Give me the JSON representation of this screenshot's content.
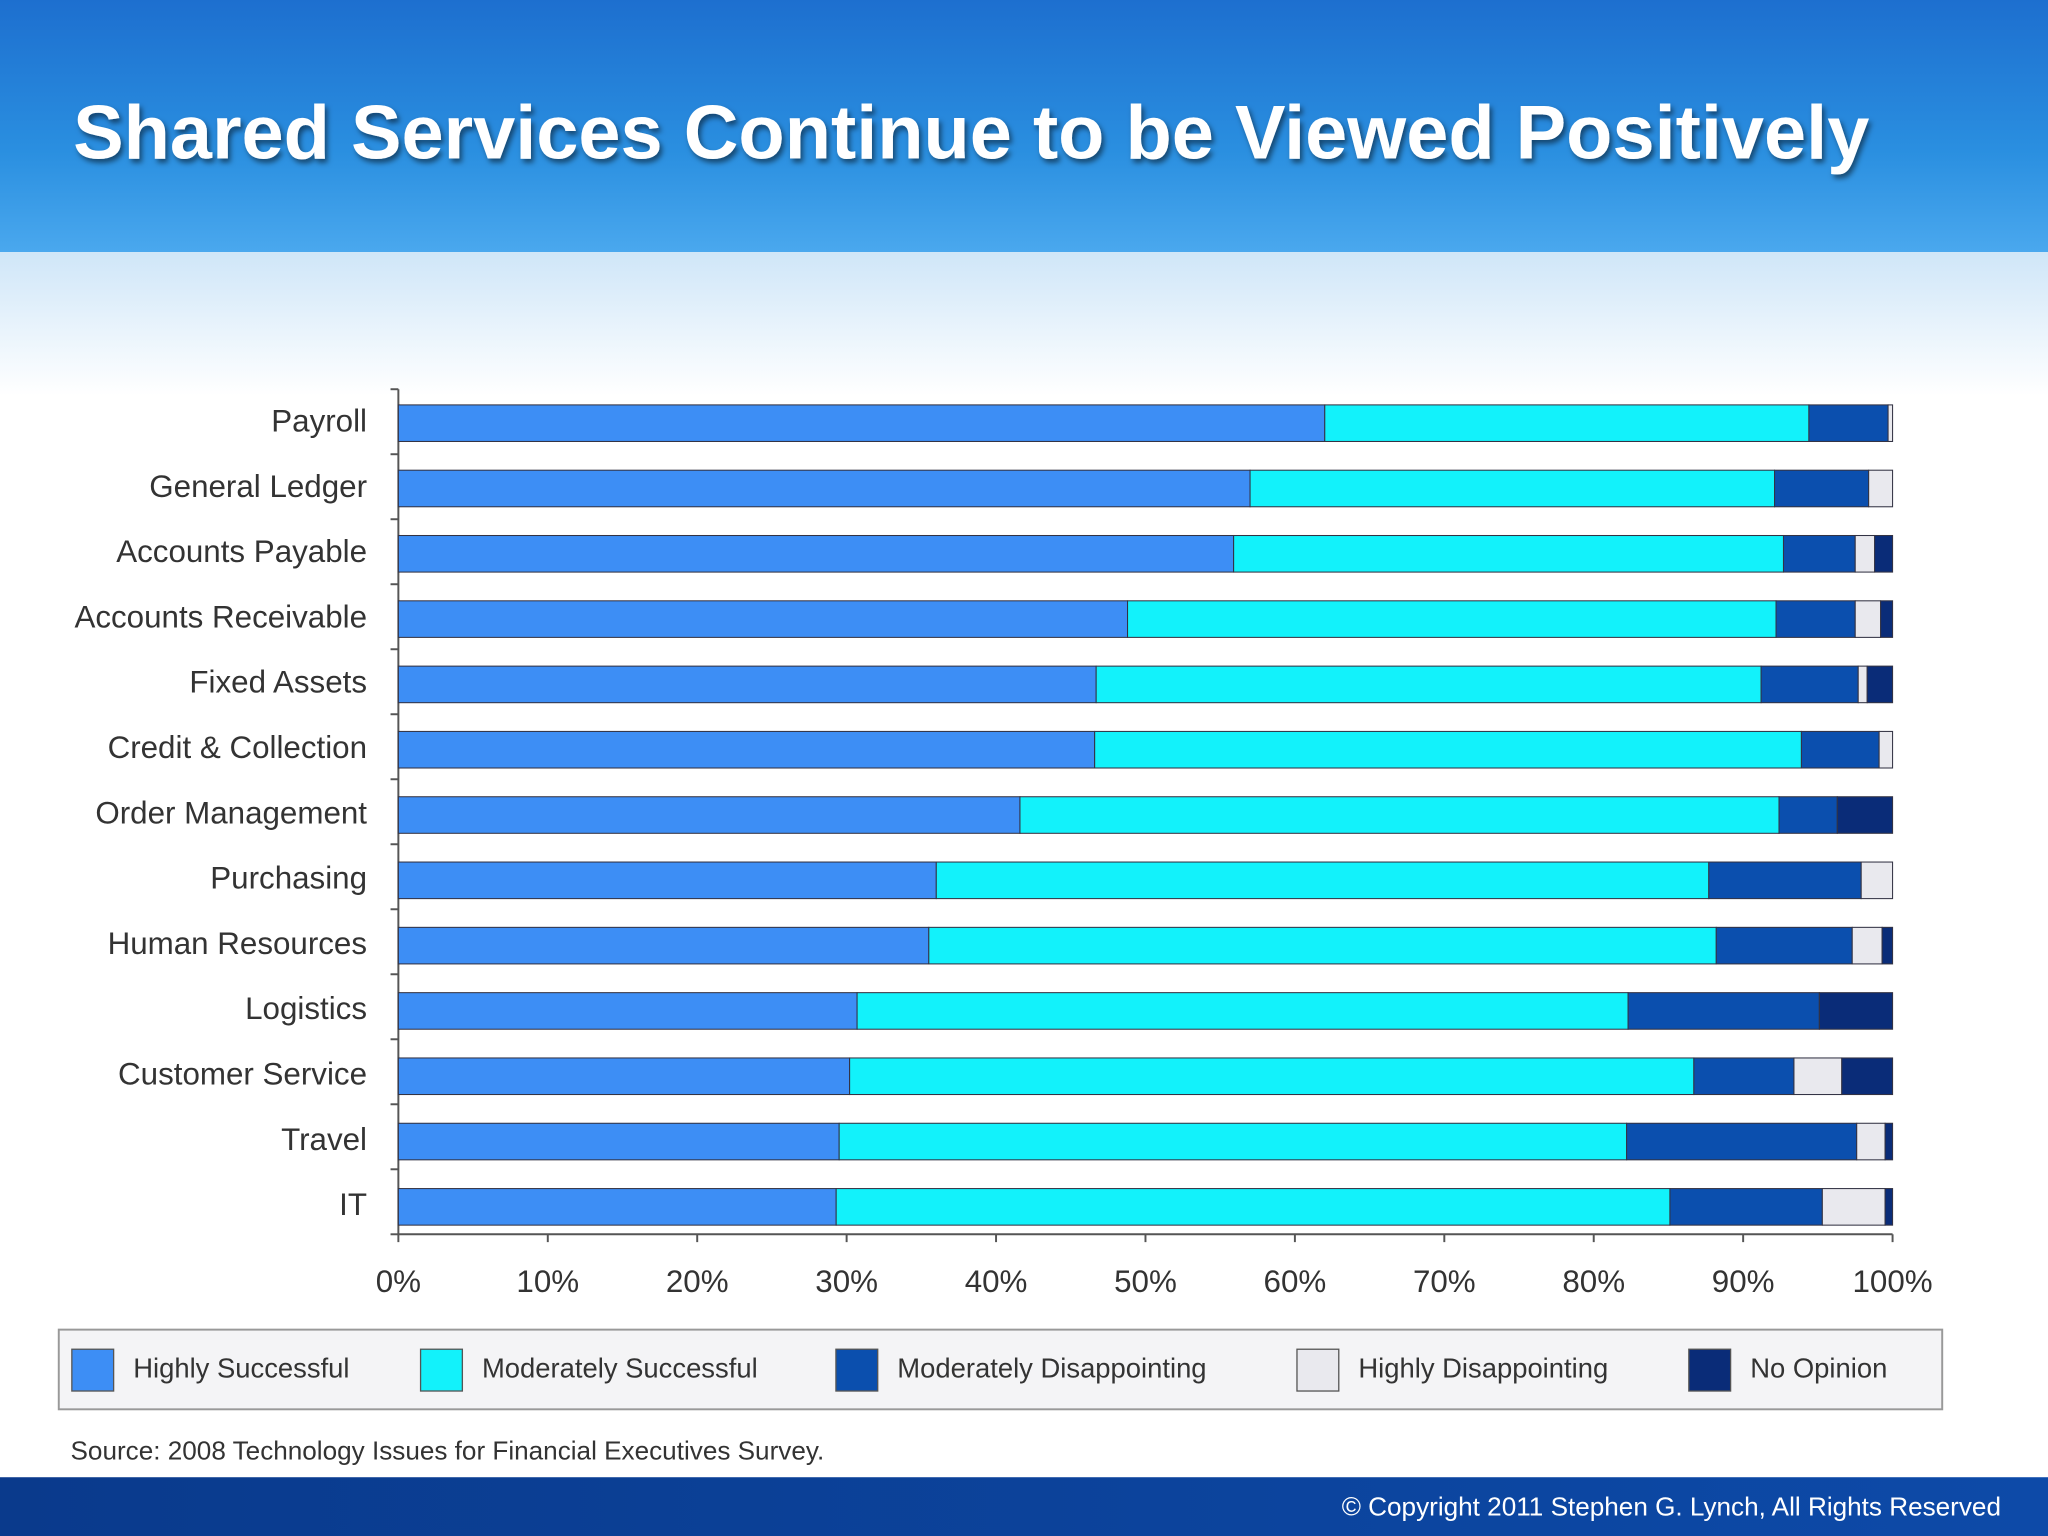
{
  "chart_data": {
    "type": "stacked-bar-horizontal",
    "title": "Shared Services Continue to be Viewed Positively",
    "categories": [
      "Payroll",
      "General Ledger",
      "Accounts Payable",
      "Accounts Receivable",
      "Fixed Assets",
      "Credit & Collection",
      "Order Management",
      "Purchasing",
      "Human Resources",
      "Logistics",
      "Customer Service",
      "Travel",
      "IT"
    ],
    "series": [
      {
        "name": "Highly Successful",
        "color": "#3d8ef5",
        "values": [
          62.0,
          57.0,
          55.9,
          48.8,
          46.7,
          46.6,
          41.6,
          36.0,
          35.5,
          30.7,
          30.2,
          29.5,
          29.3
        ]
      },
      {
        "name": "Moderately Successful",
        "color": "#12f2fb",
        "values": [
          32.4,
          35.1,
          36.8,
          43.4,
          44.5,
          47.3,
          50.8,
          51.7,
          52.7,
          51.6,
          56.5,
          52.7,
          55.8
        ]
      },
      {
        "name": "Moderately Disappointing",
        "color": "#0b4fae",
        "values": [
          5.3,
          6.3,
          4.8,
          5.3,
          6.5,
          5.2,
          3.9,
          10.2,
          9.1,
          12.8,
          6.7,
          15.4,
          10.2
        ]
      },
      {
        "name": "Highly Disappointing",
        "color": "#e9e9ee",
        "values": [
          0.3,
          1.6,
          1.3,
          1.7,
          0.6,
          0.9,
          0,
          2.1,
          2.0,
          0,
          3.2,
          1.9,
          4.2
        ]
      },
      {
        "name": "No Opinion",
        "color": "#0a2c78",
        "values": [
          0,
          0,
          1.2,
          0.8,
          1.7,
          0,
          3.7,
          0,
          0.7,
          4.9,
          3.4,
          0.5,
          0.5
        ]
      }
    ],
    "xlim": [
      0,
      100
    ],
    "xticks": [
      {
        "value": 0,
        "label": "0%"
      },
      {
        "value": 10,
        "label": "10%"
      },
      {
        "value": 20,
        "label": "20%"
      },
      {
        "value": 30,
        "label": "30%"
      },
      {
        "value": 40,
        "label": "40%"
      },
      {
        "value": 50,
        "label": "50%"
      },
      {
        "value": 60,
        "label": "60%"
      },
      {
        "value": 70,
        "label": "70%"
      },
      {
        "value": 80,
        "label": "80%"
      },
      {
        "value": 90,
        "label": "90%"
      },
      {
        "value": 100,
        "label": "100%"
      }
    ],
    "source": "Source: 2008 Technology Issues for Financial Executives Survey."
  },
  "footer": {
    "copyright": "© Copyright 2011 Stephen G. Lynch, All Rights Reserved"
  }
}
